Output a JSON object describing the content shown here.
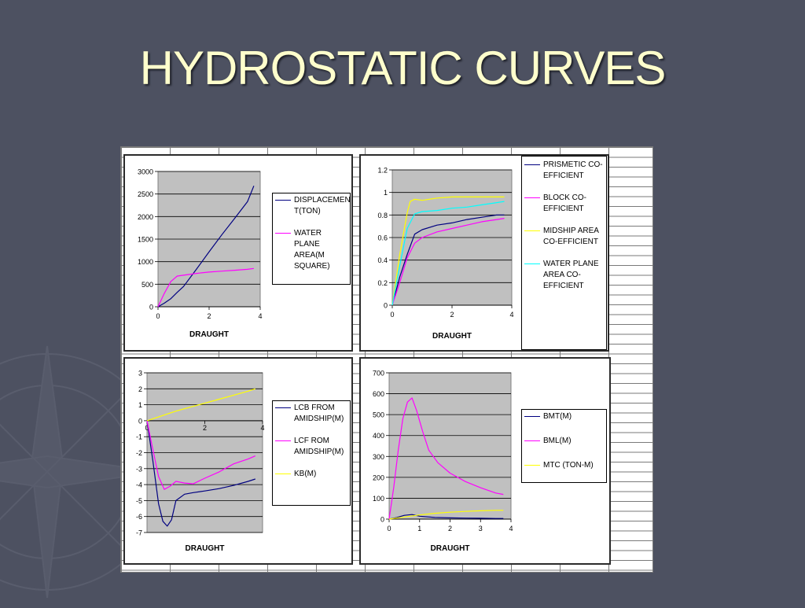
{
  "slide": {
    "title": "HYDROSTATIC CURVES"
  },
  "colors": {
    "background": "#4d5161",
    "title": "#ffffcc",
    "plot_area": "#c0c0c0",
    "navy": "#000080",
    "magenta": "#ff00ff",
    "yellow": "#ffff00",
    "cyan": "#00ffff"
  },
  "chart_data": [
    {
      "type": "line",
      "xlabel": "DRAUGHT",
      "ylabel": "",
      "xlim": [
        0,
        4
      ],
      "ylim": [
        0,
        3000
      ],
      "xticks": [
        "0",
        "2",
        "4"
      ],
      "yticks": [
        "0",
        "500",
        "1000",
        "1500",
        "2000",
        "2500",
        "3000"
      ],
      "grid": true,
      "legend_position": "right",
      "series": [
        {
          "name": "DISPLACEMEN T(TON)",
          "color": "#000080",
          "x": [
            0,
            0.25,
            0.5,
            0.75,
            1,
            1.5,
            2,
            2.5,
            3,
            3.5,
            3.75
          ],
          "y": [
            0,
            80,
            180,
            320,
            450,
            830,
            1220,
            1600,
            1960,
            2330,
            2680
          ]
        },
        {
          "name": "WATER PLANE AREA(M SQUARE)",
          "color": "#ff00ff",
          "x": [
            0,
            0.25,
            0.5,
            0.75,
            1,
            1.5,
            2,
            2.5,
            3,
            3.5,
            3.75
          ],
          "y": [
            0,
            300,
            560,
            680,
            700,
            740,
            770,
            790,
            810,
            830,
            850
          ]
        }
      ]
    },
    {
      "type": "line",
      "xlabel": "DRAUGHT",
      "ylabel": "",
      "xlim": [
        0,
        4
      ],
      "ylim": [
        0,
        1.2
      ],
      "xticks": [
        "0",
        "2",
        "4"
      ],
      "yticks": [
        "0",
        "0.2",
        "0.4",
        "0.6",
        "0.8",
        "1",
        "1.2"
      ],
      "grid": true,
      "legend_position": "right",
      "series": [
        {
          "name": "PRISMETIC CO-EFFICIENT",
          "color": "#000080",
          "x": [
            0,
            0.25,
            0.5,
            0.75,
            1,
            1.5,
            2,
            2.5,
            3,
            3.5,
            3.75
          ],
          "y": [
            0,
            0.25,
            0.45,
            0.63,
            0.67,
            0.71,
            0.73,
            0.76,
            0.78,
            0.8,
            0.8
          ]
        },
        {
          "name": "BLOCK CO-EFFICIENT",
          "color": "#ff00ff",
          "x": [
            0,
            0.25,
            0.5,
            0.75,
            1,
            1.5,
            2,
            2.5,
            3,
            3.5,
            3.75
          ],
          "y": [
            0,
            0.2,
            0.42,
            0.55,
            0.6,
            0.65,
            0.68,
            0.71,
            0.74,
            0.76,
            0.77
          ]
        },
        {
          "name": "MIDSHIP AREA CO-EFFICIENT",
          "color": "#ffff00",
          "x": [
            0,
            0.25,
            0.5,
            0.6,
            0.75,
            1,
            1.5,
            2,
            2.5,
            3,
            3.5,
            3.75
          ],
          "y": [
            0,
            0.45,
            0.82,
            0.92,
            0.94,
            0.93,
            0.95,
            0.96,
            0.96,
            0.96,
            0.96,
            0.96
          ]
        },
        {
          "name": "WATER PLANE AREA CO-EFFICIENT",
          "color": "#00ffff",
          "x": [
            0,
            0.25,
            0.5,
            0.75,
            1,
            1.5,
            2,
            2.5,
            3,
            3.5,
            3.75
          ],
          "y": [
            0,
            0.35,
            0.68,
            0.81,
            0.83,
            0.84,
            0.86,
            0.87,
            0.89,
            0.91,
            0.92
          ]
        }
      ]
    },
    {
      "type": "line",
      "xlabel": "DRAUGHT",
      "ylabel": "",
      "xlim": [
        0,
        4
      ],
      "ylim": [
        -7,
        3
      ],
      "xticks": [
        "0",
        "2",
        "4"
      ],
      "yticks": [
        "-7",
        "-6",
        "-5",
        "-4",
        "-3",
        "-2",
        "-1",
        "0",
        "1",
        "2",
        "3"
      ],
      "grid": true,
      "legend_position": "right",
      "series": [
        {
          "name": "LCB FROM AMIDSHIP(M)",
          "color": "#000080",
          "x": [
            0,
            0.2,
            0.4,
            0.55,
            0.7,
            0.85,
            1,
            1.3,
            1.6,
            2,
            2.5,
            3,
            3.5,
            3.75
          ],
          "y": [
            0,
            -2.5,
            -5.2,
            -6.3,
            -6.6,
            -6.2,
            -5,
            -4.6,
            -4.5,
            -4.4,
            -4.25,
            -4.05,
            -3.8,
            -3.65
          ]
        },
        {
          "name": "LCF ROM AMIDSHIP(M)",
          "color": "#ff00ff",
          "x": [
            0,
            0.2,
            0.4,
            0.6,
            0.8,
            1,
            1.3,
            1.6,
            2,
            2.5,
            3,
            3.5,
            3.75
          ],
          "y": [
            0,
            -1.8,
            -3.5,
            -4.3,
            -4.1,
            -3.8,
            -3.9,
            -3.95,
            -3.6,
            -3.2,
            -2.7,
            -2.4,
            -2.2
          ]
        },
        {
          "name": "KB(M)",
          "color": "#ffff00",
          "x": [
            0,
            0.5,
            1,
            1.5,
            2,
            2.5,
            3,
            3.5,
            3.75
          ],
          "y": [
            0,
            0.3,
            0.6,
            0.85,
            1.1,
            1.35,
            1.6,
            1.85,
            2.0
          ]
        }
      ]
    },
    {
      "type": "line",
      "xlabel": "DRAUGHT",
      "ylabel": "",
      "xlim": [
        0,
        4
      ],
      "ylim": [
        0,
        700
      ],
      "xticks": [
        "0",
        "1",
        "2",
        "3",
        "4"
      ],
      "yticks": [
        "0",
        "100",
        "200",
        "300",
        "400",
        "500",
        "600",
        "700"
      ],
      "grid": true,
      "legend_position": "right",
      "series": [
        {
          "name": "BMT(M)",
          "color": "#000080",
          "x": [
            0,
            0.25,
            0.5,
            0.75,
            1,
            1.5,
            2,
            2.5,
            3,
            3.5,
            3.75
          ],
          "y": [
            0,
            8,
            18,
            22,
            14,
            8,
            6,
            5,
            4,
            3,
            3
          ]
        },
        {
          "name": "BML(M)",
          "color": "#ff00ff",
          "x": [
            0,
            0.15,
            0.3,
            0.45,
            0.6,
            0.75,
            0.9,
            1.1,
            1.3,
            1.6,
            2,
            2.5,
            3,
            3.5,
            3.75
          ],
          "y": [
            0,
            150,
            330,
            480,
            560,
            580,
            520,
            420,
            330,
            270,
            220,
            180,
            150,
            125,
            118
          ]
        },
        {
          "name": "MTC (TON-M)",
          "color": "#ffff00",
          "x": [
            0,
            0.5,
            1,
            1.5,
            2,
            2.5,
            3,
            3.5,
            3.75
          ],
          "y": [
            0,
            10,
            20,
            28,
            33,
            37,
            40,
            42,
            42
          ]
        }
      ]
    }
  ]
}
